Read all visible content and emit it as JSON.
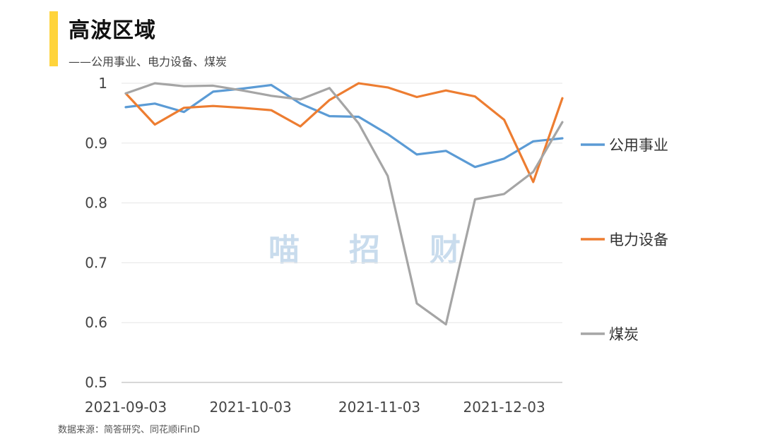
{
  "title": "高波区域",
  "subtitle": "——公用事业、电力设备、煤炭",
  "watermark": [
    "喵",
    "招",
    "财"
  ],
  "source": "数据来源：简答研究、同花顺iFinD",
  "colors": {
    "accent": "#FFD43B",
    "grid": "#e6e6e6"
  },
  "chart_data": {
    "type": "line",
    "title": "",
    "xlabel": "",
    "ylabel": "",
    "ylim": [
      0.5,
      1
    ],
    "yticks": [
      "1",
      "0.9",
      "0.8",
      "0.7",
      "0.6",
      "0.5"
    ],
    "ytick_values": [
      1,
      0.9,
      0.8,
      0.7,
      0.6,
      0.5
    ],
    "x": [
      "2021-09-03",
      "2021-09-10",
      "2021-09-17",
      "2021-09-24",
      "2021-10-01",
      "2021-10-08",
      "2021-10-15",
      "2021-10-22",
      "2021-10-29",
      "2021-11-05",
      "2021-11-12",
      "2021-11-19",
      "2021-11-26",
      "2021-12-03",
      "2021-12-10",
      "2021-12-17"
    ],
    "xtick_labels": [
      "2021-09-03",
      "2021-10-03",
      "2021-11-03",
      "2021-12-03"
    ],
    "grid": true,
    "legend": "right",
    "series": [
      {
        "name": "公用事业",
        "color": "#5B9BD5",
        "values": [
          0.96,
          0.966,
          0.952,
          0.986,
          0.991,
          0.997,
          0.966,
          0.945,
          0.944,
          0.915,
          0.881,
          0.887,
          0.86,
          0.874,
          0.903,
          0.908
        ]
      },
      {
        "name": "电力设备",
        "color": "#ED7D31",
        "values": [
          0.983,
          0.931,
          0.959,
          0.962,
          0.959,
          0.955,
          0.928,
          0.972,
          1.0,
          0.993,
          0.977,
          0.988,
          0.978,
          0.939,
          0.835,
          0.975
        ]
      },
      {
        "name": "煤炭",
        "color": "#A5A5A5",
        "values": [
          0.983,
          1.0,
          0.995,
          0.996,
          0.988,
          0.979,
          0.973,
          0.992,
          0.933,
          0.845,
          0.632,
          0.597,
          0.806,
          0.815,
          0.852,
          0.935
        ]
      }
    ]
  }
}
